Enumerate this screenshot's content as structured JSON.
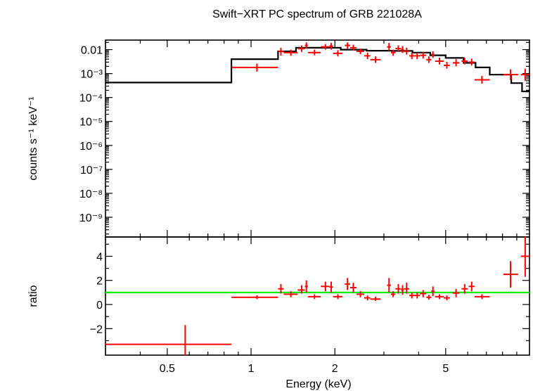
{
  "chart_data": [
    {
      "type": "scatter",
      "title": "Swift−XRT PC spectrum of GRB 221028A",
      "xlabel": "Energy (keV)",
      "ylabel": "counts s⁻¹ keV⁻¹",
      "xscale": "log",
      "yscale": "log",
      "xlim": [
        0.3,
        10
      ],
      "ylim": [
        1.5e-10,
        0.025
      ],
      "x_ticks": [
        "0.5",
        "1",
        "2",
        "5"
      ],
      "x_tick_values": [
        0.5,
        1,
        2,
        5
      ],
      "y_ticks": [
        "0.01",
        "10⁻³",
        "10⁻⁴",
        "10⁻⁵",
        "10⁻⁶",
        "10⁻⁷",
        "10⁻⁸",
        "10⁻⁹"
      ],
      "y_tick_values": [
        0.01,
        0.001,
        0.0001,
        1e-05,
        1e-06,
        1e-07,
        1e-08,
        1e-09
      ],
      "grid": false,
      "colors": {
        "data": "#ff0000",
        "model": "#000000"
      },
      "data": [
        {
          "x": 1.05,
          "xlo": 0.85,
          "xhi": 1.25,
          "y": 0.0018,
          "ylo": 0.0012,
          "yhi": 0.0026
        },
        {
          "x": 1.28,
          "xlo": 1.25,
          "xhi": 1.31,
          "y": 0.0085,
          "ylo": 0.0056,
          "yhi": 0.012
        },
        {
          "x": 1.39,
          "xlo": 1.31,
          "xhi": 1.47,
          "y": 0.0075,
          "ylo": 0.0055,
          "yhi": 0.01
        },
        {
          "x": 1.52,
          "xlo": 1.47,
          "xhi": 1.56,
          "y": 0.011,
          "ylo": 0.008,
          "yhi": 0.015
        },
        {
          "x": 1.58,
          "xlo": 1.56,
          "xhi": 1.6,
          "y": 0.015,
          "ylo": 0.011,
          "yhi": 0.02
        },
        {
          "x": 1.69,
          "xlo": 1.6,
          "xhi": 1.78,
          "y": 0.0075,
          "ylo": 0.0058,
          "yhi": 0.01
        },
        {
          "x": 1.85,
          "xlo": 1.78,
          "xhi": 1.91,
          "y": 0.013,
          "ylo": 0.01,
          "yhi": 0.017
        },
        {
          "x": 1.94,
          "xlo": 1.91,
          "xhi": 1.97,
          "y": 0.014,
          "ylo": 0.01,
          "yhi": 0.019
        },
        {
          "x": 2.05,
          "xlo": 1.97,
          "xhi": 2.13,
          "y": 0.007,
          "ylo": 0.0052,
          "yhi": 0.0095
        },
        {
          "x": 2.22,
          "xlo": 2.17,
          "xhi": 2.27,
          "y": 0.015,
          "ylo": 0.011,
          "yhi": 0.02
        },
        {
          "x": 2.33,
          "xlo": 2.27,
          "xhi": 2.39,
          "y": 0.012,
          "ylo": 0.009,
          "yhi": 0.016
        },
        {
          "x": 2.47,
          "xlo": 2.39,
          "xhi": 2.55,
          "y": 0.0085,
          "ylo": 0.0065,
          "yhi": 0.011
        },
        {
          "x": 2.62,
          "xlo": 2.55,
          "xhi": 2.68,
          "y": 0.0055,
          "ylo": 0.004,
          "yhi": 0.0075
        },
        {
          "x": 2.8,
          "xlo": 2.68,
          "xhi": 2.92,
          "y": 0.0038,
          "ylo": 0.0028,
          "yhi": 0.0052
        },
        {
          "x": 3.13,
          "xlo": 3.08,
          "xhi": 3.18,
          "y": 0.013,
          "ylo": 0.009,
          "yhi": 0.019
        },
        {
          "x": 3.24,
          "xlo": 3.18,
          "xhi": 3.3,
          "y": 0.0075,
          "ylo": 0.0055,
          "yhi": 0.01
        },
        {
          "x": 3.38,
          "xlo": 3.3,
          "xhi": 3.46,
          "y": 0.011,
          "ylo": 0.008,
          "yhi": 0.015
        },
        {
          "x": 3.5,
          "xlo": 3.46,
          "xhi": 3.54,
          "y": 0.01,
          "ylo": 0.0072,
          "yhi": 0.014
        },
        {
          "x": 3.62,
          "xlo": 3.54,
          "xhi": 3.7,
          "y": 0.0085,
          "ylo": 0.0062,
          "yhi": 0.012
        },
        {
          "x": 3.78,
          "xlo": 3.7,
          "xhi": 3.86,
          "y": 0.0055,
          "ylo": 0.004,
          "yhi": 0.0075
        },
        {
          "x": 3.95,
          "xlo": 3.86,
          "xhi": 4.04,
          "y": 0.0055,
          "ylo": 0.004,
          "yhi": 0.0075
        },
        {
          "x": 4.15,
          "xlo": 4.04,
          "xhi": 4.26,
          "y": 0.0058,
          "ylo": 0.0042,
          "yhi": 0.008
        },
        {
          "x": 4.35,
          "xlo": 4.26,
          "xhi": 4.44,
          "y": 0.0038,
          "ylo": 0.0028,
          "yhi": 0.0052
        },
        {
          "x": 4.5,
          "xlo": 4.44,
          "xhi": 4.56,
          "y": 0.0062,
          "ylo": 0.0045,
          "yhi": 0.0085
        },
        {
          "x": 4.75,
          "xlo": 4.58,
          "xhi": 4.92,
          "y": 0.0033,
          "ylo": 0.0024,
          "yhi": 0.0046
        },
        {
          "x": 5.05,
          "xlo": 4.92,
          "xhi": 5.18,
          "y": 0.0022,
          "ylo": 0.0016,
          "yhi": 0.0031
        },
        {
          "x": 5.45,
          "xlo": 5.3,
          "xhi": 5.6,
          "y": 0.0028,
          "ylo": 0.002,
          "yhi": 0.004
        },
        {
          "x": 5.85,
          "xlo": 5.7,
          "xhi": 6.0,
          "y": 0.0033,
          "ylo": 0.0024,
          "yhi": 0.0046
        },
        {
          "x": 6.2,
          "xlo": 6.05,
          "xhi": 6.35,
          "y": 0.003,
          "ylo": 0.0022,
          "yhi": 0.0042
        },
        {
          "x": 6.75,
          "xlo": 6.35,
          "xhi": 7.2,
          "y": 0.00055,
          "ylo": 0.00038,
          "yhi": 0.0008
        },
        {
          "x": 8.55,
          "xlo": 8.05,
          "xhi": 9.1,
          "y": 0.0009,
          "ylo": 0.00055,
          "yhi": 0.0015
        },
        {
          "x": 9.65,
          "xlo": 9.3,
          "xhi": 10.0,
          "y": 0.0009,
          "ylo": 0.0005,
          "yhi": 0.0016
        }
      ],
      "model": [
        {
          "x0": 0.3,
          "x1": 0.85,
          "y": 0.00042
        },
        {
          "x0": 0.85,
          "x1": 1.25,
          "y": 0.004
        },
        {
          "x0": 1.25,
          "x1": 1.45,
          "y": 0.0085
        },
        {
          "x0": 1.45,
          "x1": 1.75,
          "y": 0.012
        },
        {
          "x0": 1.75,
          "x1": 2.1,
          "y": 0.012
        },
        {
          "x0": 2.1,
          "x1": 2.6,
          "y": 0.01
        },
        {
          "x0": 2.6,
          "x1": 3.2,
          "y": 0.009
        },
        {
          "x0": 3.2,
          "x1": 3.8,
          "y": 0.0088
        },
        {
          "x0": 3.8,
          "x1": 4.4,
          "y": 0.0075
        },
        {
          "x0": 4.4,
          "x1": 5.0,
          "y": 0.0058
        },
        {
          "x0": 5.0,
          "x1": 5.8,
          "y": 0.0045
        },
        {
          "x0": 5.8,
          "x1": 6.4,
          "y": 0.0028
        },
        {
          "x0": 6.4,
          "x1": 7.2,
          "y": 0.0018
        },
        {
          "x0": 7.2,
          "x1": 8.6,
          "y": 0.0009
        },
        {
          "x0": 8.6,
          "x1": 9.4,
          "y": 0.0004
        },
        {
          "x0": 9.4,
          "x1": 10.0,
          "y": 0.00018
        }
      ]
    },
    {
      "type": "scatter",
      "xlabel": "Energy (keV)",
      "ylabel": "ratio",
      "xscale": "log",
      "xlim": [
        0.3,
        10
      ],
      "ylim": [
        -4.2,
        5.6
      ],
      "x_ticks": [
        "0.5",
        "1",
        "2",
        "5"
      ],
      "x_tick_values": [
        0.5,
        1,
        2,
        5
      ],
      "y_ticks": [
        "4",
        "2",
        "0",
        "−2"
      ],
      "y_tick_values": [
        4,
        2,
        0,
        -2
      ],
      "reference_line": 1,
      "grid": false,
      "colors": {
        "data": "#ff0000",
        "reference": "#00ee00"
      },
      "data": [
        {
          "x": 0.58,
          "xlo": 0.3,
          "xhi": 0.85,
          "y": -3.3,
          "ylo": -4.2,
          "yhi": -1.7
        },
        {
          "x": 1.05,
          "xlo": 0.85,
          "xhi": 1.25,
          "y": 0.6,
          "ylo": 0.45,
          "yhi": 0.75
        },
        {
          "x": 1.28,
          "xlo": 1.25,
          "xhi": 1.31,
          "y": 1.3,
          "ylo": 0.9,
          "yhi": 1.7
        },
        {
          "x": 1.39,
          "xlo": 1.31,
          "xhi": 1.47,
          "y": 0.85,
          "ylo": 0.6,
          "yhi": 1.1
        },
        {
          "x": 1.52,
          "xlo": 1.47,
          "xhi": 1.56,
          "y": 1.2,
          "ylo": 0.9,
          "yhi": 1.6
        },
        {
          "x": 1.58,
          "xlo": 1.56,
          "xhi": 1.6,
          "y": 1.5,
          "ylo": 1.0,
          "yhi": 2.0
        },
        {
          "x": 1.69,
          "xlo": 1.6,
          "xhi": 1.78,
          "y": 0.65,
          "ylo": 0.45,
          "yhi": 0.85
        },
        {
          "x": 1.85,
          "xlo": 1.78,
          "xhi": 1.91,
          "y": 1.5,
          "ylo": 1.1,
          "yhi": 1.9
        },
        {
          "x": 1.94,
          "xlo": 1.91,
          "xhi": 1.97,
          "y": 1.45,
          "ylo": 1.0,
          "yhi": 1.9
        },
        {
          "x": 2.05,
          "xlo": 1.97,
          "xhi": 2.13,
          "y": 0.65,
          "ylo": 0.45,
          "yhi": 0.85
        },
        {
          "x": 2.22,
          "xlo": 2.17,
          "xhi": 2.27,
          "y": 1.7,
          "ylo": 1.2,
          "yhi": 2.2
        },
        {
          "x": 2.33,
          "xlo": 2.27,
          "xhi": 2.39,
          "y": 1.4,
          "ylo": 1.0,
          "yhi": 1.8
        },
        {
          "x": 2.47,
          "xlo": 2.39,
          "xhi": 2.55,
          "y": 0.85,
          "ylo": 0.6,
          "yhi": 1.1
        },
        {
          "x": 2.62,
          "xlo": 2.55,
          "xhi": 2.68,
          "y": 0.55,
          "ylo": 0.35,
          "yhi": 0.75
        },
        {
          "x": 2.8,
          "xlo": 2.68,
          "xhi": 2.92,
          "y": 0.45,
          "ylo": 0.3,
          "yhi": 0.65
        },
        {
          "x": 3.13,
          "xlo": 3.08,
          "xhi": 3.18,
          "y": 1.6,
          "ylo": 1.0,
          "yhi": 2.2
        },
        {
          "x": 3.24,
          "xlo": 3.18,
          "xhi": 3.3,
          "y": 0.85,
          "ylo": 0.6,
          "yhi": 1.1
        },
        {
          "x": 3.38,
          "xlo": 3.3,
          "xhi": 3.46,
          "y": 1.3,
          "ylo": 0.9,
          "yhi": 1.7
        },
        {
          "x": 3.5,
          "xlo": 3.46,
          "xhi": 3.54,
          "y": 1.2,
          "ylo": 0.8,
          "yhi": 1.6
        },
        {
          "x": 3.62,
          "xlo": 3.54,
          "xhi": 3.7,
          "y": 1.3,
          "ylo": 0.9,
          "yhi": 1.8
        },
        {
          "x": 3.78,
          "xlo": 3.7,
          "xhi": 3.86,
          "y": 0.75,
          "ylo": 0.5,
          "yhi": 1.0
        },
        {
          "x": 3.95,
          "xlo": 3.86,
          "xhi": 4.04,
          "y": 0.75,
          "ylo": 0.5,
          "yhi": 1.0
        },
        {
          "x": 4.15,
          "xlo": 4.04,
          "xhi": 4.26,
          "y": 0.9,
          "ylo": 0.6,
          "yhi": 1.2
        },
        {
          "x": 4.35,
          "xlo": 4.26,
          "xhi": 4.44,
          "y": 0.6,
          "ylo": 0.4,
          "yhi": 0.8
        },
        {
          "x": 4.5,
          "xlo": 4.44,
          "xhi": 4.56,
          "y": 1.1,
          "ylo": 0.7,
          "yhi": 1.5
        },
        {
          "x": 4.75,
          "xlo": 4.58,
          "xhi": 4.92,
          "y": 0.65,
          "ylo": 0.45,
          "yhi": 0.85
        },
        {
          "x": 5.05,
          "xlo": 4.92,
          "xhi": 5.18,
          "y": 0.55,
          "ylo": 0.35,
          "yhi": 0.75
        },
        {
          "x": 5.45,
          "xlo": 5.3,
          "xhi": 5.6,
          "y": 0.95,
          "ylo": 0.6,
          "yhi": 1.3
        },
        {
          "x": 5.85,
          "xlo": 5.7,
          "xhi": 6.0,
          "y": 1.3,
          "ylo": 0.9,
          "yhi": 1.7
        },
        {
          "x": 6.2,
          "xlo": 6.05,
          "xhi": 6.35,
          "y": 1.5,
          "ylo": 1.1,
          "yhi": 1.9
        },
        {
          "x": 6.75,
          "xlo": 6.35,
          "xhi": 7.2,
          "y": 0.65,
          "ylo": 0.45,
          "yhi": 0.85
        },
        {
          "x": 8.55,
          "xlo": 8.05,
          "xhi": 9.1,
          "y": 2.5,
          "ylo": 1.4,
          "yhi": 3.6
        },
        {
          "x": 9.65,
          "xlo": 9.3,
          "xhi": 10.0,
          "y": 4.0,
          "ylo": 2.3,
          "yhi": 5.6
        }
      ]
    }
  ]
}
